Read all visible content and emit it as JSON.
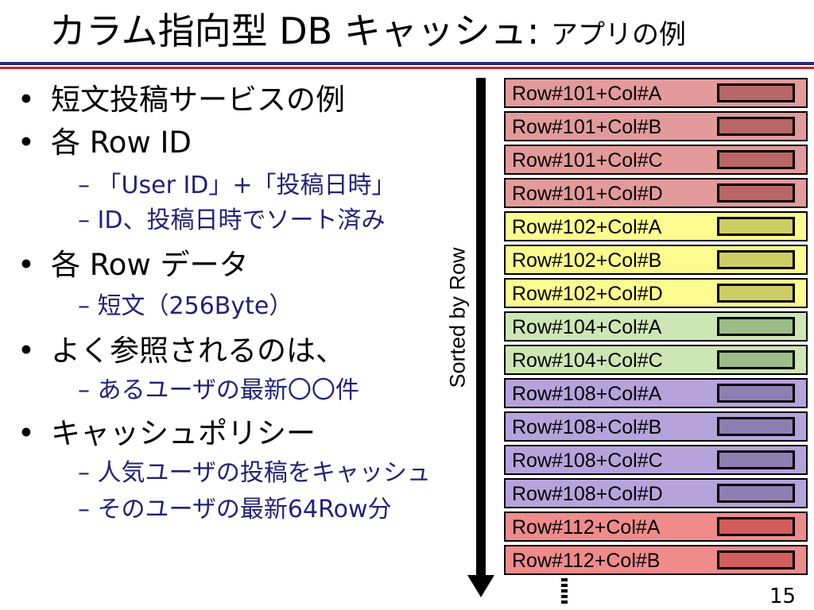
{
  "slide": {
    "title_main": "カラム指向型 DB キャッシュ: ",
    "title_sub": "アプリの例",
    "page_number": "15"
  },
  "bullets": [
    {
      "text": "短文投稿サービスの例",
      "level": 1
    },
    {
      "text": "各 Row ID",
      "level": 1
    },
    {
      "text": "– 「User ID」+「投稿日時」",
      "level": 2
    },
    {
      "text": "– ID、投稿日時でソート済み",
      "level": 2
    },
    {
      "text": "各 Row データ",
      "level": 1
    },
    {
      "text": "– 短文（256Byte）",
      "level": 2
    },
    {
      "text": "よく参照されるのは、",
      "level": 1
    },
    {
      "text": "– あるユーザの最新〇〇件",
      "level": 2
    },
    {
      "text": "キャッシュポリシー",
      "level": 1
    },
    {
      "text": "– 人気ユーザの投稿をキャッシュ",
      "level": 2
    },
    {
      "text": "– そのユーザの最新64Row分",
      "level": 2
    }
  ],
  "bullet_symbol": "•",
  "diagram": {
    "axis_label": "Sorted by Row",
    "rows": [
      {
        "label": "Row#101+Col#A",
        "group": "101",
        "color": "#e39a9a",
        "box": "#b96666"
      },
      {
        "label": "Row#101+Col#B",
        "group": "101",
        "color": "#e39a9a",
        "box": "#b96666"
      },
      {
        "label": "Row#101+Col#C",
        "group": "101",
        "color": "#e39a9a",
        "box": "#b96666"
      },
      {
        "label": "Row#101+Col#D",
        "group": "101",
        "color": "#e39a9a",
        "box": "#b96666"
      },
      {
        "label": "Row#102+Col#A",
        "group": "102",
        "color": "#fbfb8f",
        "box": "#cdcd66"
      },
      {
        "label": "Row#102+Col#B",
        "group": "102",
        "color": "#fbfb8f",
        "box": "#cdcd66"
      },
      {
        "label": "Row#102+Col#D",
        "group": "102",
        "color": "#fbfb8f",
        "box": "#cdcd66"
      },
      {
        "label": "Row#104+Col#A",
        "group": "104",
        "color": "#cde7b4",
        "box": "#9cbc88"
      },
      {
        "label": "Row#104+Col#C",
        "group": "104",
        "color": "#cde7b4",
        "box": "#9cbc88"
      },
      {
        "label": "Row#108+Col#A",
        "group": "108",
        "color": "#b7a3db",
        "box": "#8f7eb2"
      },
      {
        "label": "Row#108+Col#B",
        "group": "108",
        "color": "#b7a3db",
        "box": "#8f7eb2"
      },
      {
        "label": "Row#108+Col#C",
        "group": "108",
        "color": "#b7a3db",
        "box": "#8f7eb2"
      },
      {
        "label": "Row#108+Col#D",
        "group": "108",
        "color": "#b7a3db",
        "box": "#8f7eb2"
      },
      {
        "label": "Row#112+Col#A",
        "group": "112",
        "color": "#ef8b8b",
        "box": "#d25d5d"
      },
      {
        "label": "Row#112+Col#B",
        "group": "112",
        "color": "#ef8b8b",
        "box": "#d25d5d"
      }
    ]
  },
  "colors": {
    "rule_blue": "#2a2a7a",
    "rule_red": "#c0282d",
    "sub_bullet_text": "#22227a"
  }
}
